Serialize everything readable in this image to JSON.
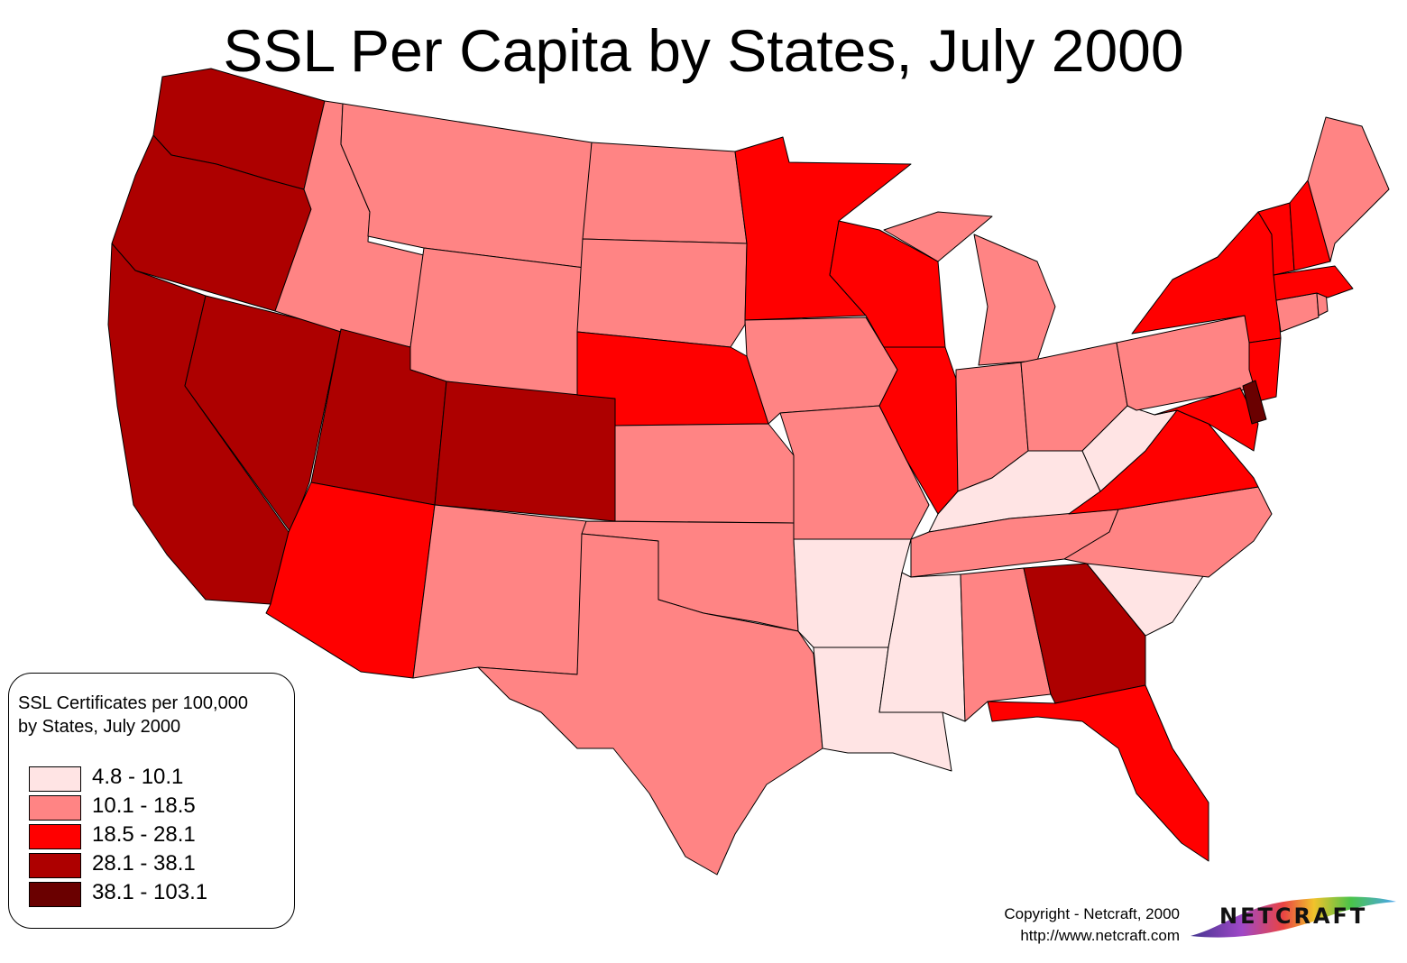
{
  "title": "SSL Per Capita by States, July 2000",
  "legend": {
    "title_line1": "SSL Certificates per 100,000",
    "title_line2": "by States,  July 2000",
    "classes": [
      {
        "label": "4.8 - 10.1",
        "color": "#ffe4e4"
      },
      {
        "label": "10.1 - 18.5",
        "color": "#ff8484"
      },
      {
        "label": "18.5 - 28.1",
        "color": "#ff0000"
      },
      {
        "label": "28.1 - 38.1",
        "color": "#ad0000"
      },
      {
        "label": "38.1 - 103.1",
        "color": "#6a0000"
      }
    ]
  },
  "states": [
    {
      "name": "Washington",
      "class": 3
    },
    {
      "name": "Oregon",
      "class": 3
    },
    {
      "name": "California",
      "class": 3
    },
    {
      "name": "Nevada",
      "class": 3
    },
    {
      "name": "Idaho",
      "class": 1
    },
    {
      "name": "Montana",
      "class": 1
    },
    {
      "name": "Wyoming",
      "class": 1
    },
    {
      "name": "Utah",
      "class": 3
    },
    {
      "name": "Colorado",
      "class": 3
    },
    {
      "name": "Arizona",
      "class": 2
    },
    {
      "name": "New Mexico",
      "class": 1
    },
    {
      "name": "North Dakota",
      "class": 1
    },
    {
      "name": "South Dakota",
      "class": 1
    },
    {
      "name": "Nebraska",
      "class": 2
    },
    {
      "name": "Kansas",
      "class": 1
    },
    {
      "name": "Oklahoma",
      "class": 1
    },
    {
      "name": "Texas",
      "class": 1
    },
    {
      "name": "Minnesota",
      "class": 2
    },
    {
      "name": "Iowa",
      "class": 1
    },
    {
      "name": "Missouri",
      "class": 1
    },
    {
      "name": "Arkansas",
      "class": 0
    },
    {
      "name": "Louisiana",
      "class": 0
    },
    {
      "name": "Wisconsin",
      "class": 2
    },
    {
      "name": "Illinois",
      "class": 2
    },
    {
      "name": "Michigan",
      "class": 1
    },
    {
      "name": "Indiana",
      "class": 1
    },
    {
      "name": "Ohio",
      "class": 1
    },
    {
      "name": "Kentucky",
      "class": 0
    },
    {
      "name": "Tennessee",
      "class": 1
    },
    {
      "name": "Mississippi",
      "class": 0
    },
    {
      "name": "Alabama",
      "class": 1
    },
    {
      "name": "Georgia",
      "class": 3
    },
    {
      "name": "Florida",
      "class": 2
    },
    {
      "name": "South Carolina",
      "class": 0
    },
    {
      "name": "North Carolina",
      "class": 1
    },
    {
      "name": "Virginia",
      "class": 2
    },
    {
      "name": "West Virginia",
      "class": 0
    },
    {
      "name": "Pennsylvania",
      "class": 1
    },
    {
      "name": "New York",
      "class": 2
    },
    {
      "name": "New Jersey",
      "class": 2
    },
    {
      "name": "Delaware",
      "class": 4
    },
    {
      "name": "Maryland",
      "class": 2
    },
    {
      "name": "Connecticut",
      "class": 1
    },
    {
      "name": "Rhode Island",
      "class": 1
    },
    {
      "name": "Massachusetts",
      "class": 2
    },
    {
      "name": "Vermont",
      "class": 2
    },
    {
      "name": "New Hampshire",
      "class": 2
    },
    {
      "name": "Maine",
      "class": 1
    }
  ],
  "copyright": {
    "line1": "Copyright - Netcraft, 2000",
    "line2": "http://www.netcraft.com"
  },
  "logo": {
    "text": "NETCRAFT"
  }
}
